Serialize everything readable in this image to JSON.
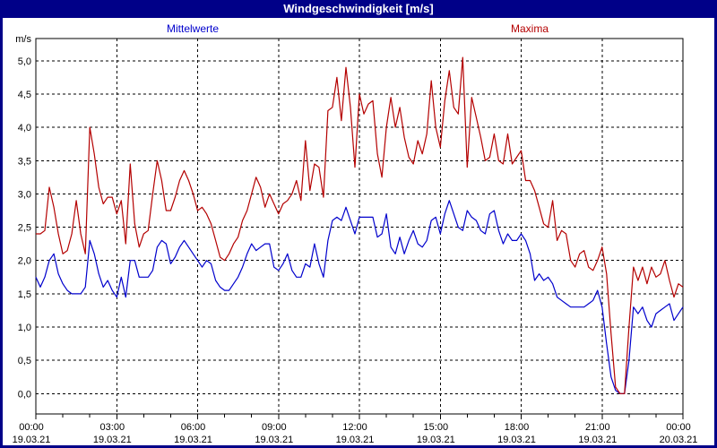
{
  "window": {
    "title": "Windgeschwindigkeit [m/s]"
  },
  "legend": {
    "mean_label": "Mittelwerte",
    "max_label": "Maxima"
  },
  "colors": {
    "titlebar": "#000088",
    "background": "#ffffff",
    "axis": "#000000",
    "mean_series": "#0000cc",
    "max_series": "#b40000"
  },
  "axis": {
    "unit_label": "m/s",
    "y_min": 0,
    "y_max": 5,
    "y_step": 0.5,
    "y_tick_labels": [
      "0,0",
      "0,5",
      "1,0",
      "1,5",
      "2,0",
      "2,5",
      "3,0",
      "3,5",
      "4,0",
      "4,5",
      "5,0"
    ],
    "x_tick_times": [
      "00:00",
      "03:00",
      "06:00",
      "09:00",
      "12:00",
      "15:00",
      "18:00",
      "21:00",
      "00:00"
    ],
    "x_tick_dates": [
      "19.03.21",
      "19.03.21",
      "19.03.21",
      "19.03.21",
      "19.03.21",
      "19.03.21",
      "19.03.21",
      "19.03.21",
      "20.03.21"
    ]
  },
  "chart_data": {
    "type": "line",
    "title": "Windgeschwindigkeit [m/s]",
    "ylabel": "m/s",
    "ylim": [
      0,
      5
    ],
    "grid": true,
    "legend_position": "top",
    "x_unit": "minutes since 00:00 19.03.21",
    "x_step_minutes": 10,
    "x_range_minutes": [
      0,
      1440
    ],
    "series": [
      {
        "name": "Mittelwerte",
        "color": "#0000cc",
        "values": [
          1.75,
          1.6,
          1.75,
          2.0,
          2.1,
          1.8,
          1.65,
          1.55,
          1.5,
          1.5,
          1.5,
          1.6,
          2.3,
          2.1,
          1.8,
          1.6,
          1.7,
          1.55,
          1.45,
          1.75,
          1.45,
          2.0,
          2.0,
          1.75,
          1.75,
          1.75,
          1.85,
          2.2,
          2.3,
          2.25,
          1.95,
          2.05,
          2.2,
          2.3,
          2.2,
          2.1,
          2.0,
          1.9,
          2.0,
          1.95,
          1.7,
          1.6,
          1.55,
          1.55,
          1.65,
          1.75,
          1.9,
          2.1,
          2.25,
          2.15,
          2.2,
          2.25,
          2.25,
          1.9,
          1.85,
          1.95,
          2.1,
          1.85,
          1.75,
          1.75,
          1.95,
          1.9,
          2.25,
          1.95,
          1.75,
          2.3,
          2.6,
          2.65,
          2.6,
          2.8,
          2.6,
          2.4,
          2.65,
          2.65,
          2.65,
          2.65,
          2.35,
          2.4,
          2.7,
          2.2,
          2.1,
          2.35,
          2.1,
          2.3,
          2.45,
          2.25,
          2.2,
          2.3,
          2.6,
          2.65,
          2.4,
          2.7,
          2.9,
          2.7,
          2.5,
          2.45,
          2.75,
          2.65,
          2.6,
          2.45,
          2.4,
          2.7,
          2.75,
          2.45,
          2.25,
          2.4,
          2.3,
          2.3,
          2.4,
          2.3,
          2.1,
          1.7,
          1.8,
          1.7,
          1.75,
          1.65,
          1.45,
          1.4,
          1.35,
          1.3,
          1.3,
          1.3,
          1.3,
          1.35,
          1.4,
          1.55,
          1.3,
          0.75,
          0.25,
          0.05,
          0.0,
          0.0,
          0.5,
          1.3,
          1.2,
          1.3,
          1.1,
          1.0,
          1.2,
          1.25,
          1.3,
          1.35,
          1.1,
          1.2,
          1.3
        ]
      },
      {
        "name": "Maxima",
        "color": "#b40000",
        "values": [
          2.4,
          2.4,
          2.45,
          3.1,
          2.8,
          2.4,
          2.1,
          2.15,
          2.4,
          2.9,
          2.4,
          2.1,
          4.0,
          3.6,
          3.1,
          2.85,
          2.95,
          2.95,
          2.7,
          2.9,
          2.25,
          3.45,
          2.55,
          2.2,
          2.4,
          2.45,
          3.0,
          3.5,
          3.2,
          2.75,
          2.75,
          2.95,
          3.2,
          3.35,
          3.2,
          3.0,
          2.75,
          2.8,
          2.7,
          2.55,
          2.3,
          2.05,
          2.0,
          2.1,
          2.25,
          2.35,
          2.6,
          2.75,
          3.0,
          3.25,
          3.1,
          2.8,
          3.0,
          2.85,
          2.7,
          2.85,
          2.9,
          3.0,
          3.2,
          2.9,
          3.8,
          3.05,
          3.45,
          3.4,
          2.95,
          4.25,
          4.3,
          4.75,
          4.1,
          4.9,
          4.3,
          3.4,
          4.5,
          4.2,
          4.35,
          4.4,
          3.6,
          3.25,
          4.0,
          4.45,
          4.0,
          4.3,
          3.85,
          3.55,
          3.45,
          3.8,
          3.6,
          3.9,
          4.7,
          4.0,
          3.7,
          4.4,
          4.85,
          4.3,
          4.2,
          5.05,
          3.4,
          4.45,
          4.15,
          3.85,
          3.5,
          3.55,
          3.9,
          3.5,
          3.45,
          3.9,
          3.45,
          3.55,
          3.65,
          3.2,
          3.2,
          3.05,
          2.8,
          2.55,
          2.5,
          2.9,
          2.3,
          2.45,
          2.4,
          2.0,
          1.9,
          2.1,
          2.15,
          1.9,
          1.85,
          2.0,
          2.2,
          1.8,
          0.9,
          0.1,
          0.0,
          0.0,
          1.0,
          1.9,
          1.7,
          1.9,
          1.65,
          1.9,
          1.75,
          1.8,
          2.0,
          1.7,
          1.45,
          1.65,
          1.6
        ]
      }
    ]
  }
}
